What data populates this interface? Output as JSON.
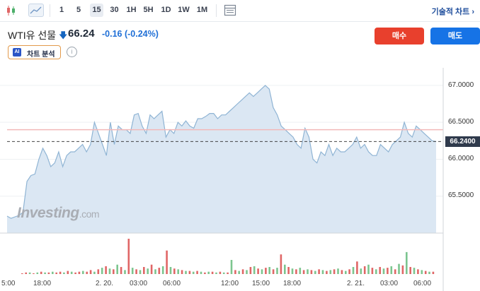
{
  "toolbar": {
    "intervals": [
      "1",
      "5",
      "15",
      "30",
      "1H",
      "5H",
      "1D",
      "1W",
      "1M"
    ],
    "active_interval": "15",
    "tech_analysis": "기술적 차트 ›"
  },
  "header": {
    "title": "WTI유 선물",
    "price": "66.24",
    "change": "-0.16 (-0.24%)",
    "ai_button": "차트 분석",
    "ai_badge": "AI",
    "buy": "매수",
    "sell": "매도"
  },
  "watermark": {
    "brand": "Investing",
    "suffix": ".com"
  },
  "colors": {
    "line": "#8fb4d4",
    "area": "#dbe7f3",
    "up": "#7cc58f",
    "down": "#e06666",
    "ref_line": "#f2b8b8",
    "buy": "#e8402d",
    "sell": "#1673e6"
  },
  "chart_data": {
    "type": "area",
    "y_ticks": [
      "67.0000",
      "66.5000",
      "66.0000",
      "65.5000"
    ],
    "y_range": [
      65.0,
      67.2
    ],
    "last_price_label": "66.2400",
    "last_price": 66.24,
    "reference_price": 66.4,
    "x_ticks": [
      "5:00",
      "18:00",
      "2. 20.",
      "03:00",
      "06:00",
      "12:00",
      "15:00",
      "18:00",
      "2. 21.",
      "03:00",
      "06:00"
    ],
    "values": [
      65.23,
      65.2,
      65.22,
      65.24,
      65.28,
      65.7,
      65.78,
      65.8,
      66.0,
      66.15,
      66.05,
      65.9,
      65.95,
      66.1,
      65.9,
      66.05,
      66.1,
      66.1,
      66.15,
      66.2,
      66.1,
      66.2,
      66.5,
      66.35,
      66.2,
      66.05,
      66.5,
      66.2,
      66.45,
      66.4,
      66.4,
      66.35,
      66.6,
      66.62,
      66.45,
      66.35,
      66.6,
      66.55,
      66.6,
      66.65,
      66.3,
      66.4,
      66.35,
      66.5,
      66.45,
      66.52,
      66.45,
      66.42,
      66.55,
      66.55,
      66.58,
      66.62,
      66.62,
      66.55,
      66.6,
      66.6,
      66.65,
      66.7,
      66.75,
      66.8,
      66.85,
      66.9,
      66.85,
      66.9,
      66.95,
      67.0,
      66.95,
      66.7,
      66.6,
      66.45,
      66.4,
      66.35,
      66.3,
      66.2,
      66.15,
      66.42,
      66.3,
      66.0,
      65.95,
      66.1,
      66.05,
      66.2,
      66.05,
      66.15,
      66.1,
      66.1,
      66.15,
      66.2,
      66.3,
      66.15,
      66.2,
      66.1,
      66.05,
      66.05,
      66.2,
      66.15,
      66.1,
      66.2,
      66.25,
      66.3,
      66.5,
      66.35,
      66.3,
      66.45,
      66.4,
      66.35,
      66.3,
      66.25,
      66.24
    ],
    "volume": [
      [
        0,
        1
      ],
      [
        0,
        2
      ],
      [
        1,
        2
      ],
      [
        0,
        1
      ],
      [
        1,
        2
      ],
      [
        0,
        3
      ],
      [
        1,
        2
      ],
      [
        0,
        2
      ],
      [
        1,
        3
      ],
      [
        0,
        2
      ],
      [
        0,
        3
      ],
      [
        1,
        2
      ],
      [
        0,
        4
      ],
      [
        1,
        3
      ],
      [
        0,
        2
      ],
      [
        0,
        3
      ],
      [
        1,
        4
      ],
      [
        0,
        3
      ],
      [
        0,
        5
      ],
      [
        1,
        3
      ],
      [
        0,
        6
      ],
      [
        1,
        8
      ],
      [
        0,
        10
      ],
      [
        1,
        7
      ],
      [
        0,
        6
      ],
      [
        1,
        12
      ],
      [
        0,
        9
      ],
      [
        1,
        5
      ],
      [
        0,
        45
      ],
      [
        1,
        8
      ],
      [
        0,
        6
      ],
      [
        1,
        5
      ],
      [
        0,
        9
      ],
      [
        1,
        7
      ],
      [
        0,
        12
      ],
      [
        1,
        6
      ],
      [
        0,
        8
      ],
      [
        1,
        10
      ],
      [
        0,
        30
      ],
      [
        1,
        9
      ],
      [
        0,
        7
      ],
      [
        1,
        6
      ],
      [
        0,
        5
      ],
      [
        1,
        4
      ],
      [
        0,
        4
      ],
      [
        1,
        3
      ],
      [
        0,
        4
      ],
      [
        1,
        3
      ],
      [
        0,
        2
      ],
      [
        1,
        3
      ],
      [
        0,
        3
      ],
      [
        1,
        2
      ],
      [
        0,
        3
      ],
      [
        1,
        2
      ],
      [
        0,
        2
      ],
      [
        1,
        18
      ],
      [
        0,
        5
      ],
      [
        1,
        4
      ],
      [
        0,
        6
      ],
      [
        1,
        5
      ],
      [
        0,
        9
      ],
      [
        1,
        10
      ],
      [
        0,
        7
      ],
      [
        1,
        6
      ],
      [
        0,
        8
      ],
      [
        1,
        9
      ],
      [
        0,
        6
      ],
      [
        1,
        8
      ],
      [
        0,
        25
      ],
      [
        1,
        12
      ],
      [
        0,
        9
      ],
      [
        1,
        7
      ],
      [
        0,
        6
      ],
      [
        1,
        8
      ],
      [
        0,
        5
      ],
      [
        1,
        6
      ],
      [
        0,
        5
      ],
      [
        1,
        4
      ],
      [
        0,
        6
      ],
      [
        1,
        5
      ],
      [
        0,
        4
      ],
      [
        1,
        5
      ],
      [
        0,
        6
      ],
      [
        1,
        7
      ],
      [
        0,
        5
      ],
      [
        1,
        4
      ],
      [
        0,
        6
      ],
      [
        1,
        9
      ],
      [
        0,
        16
      ],
      [
        1,
        7
      ],
      [
        0,
        10
      ],
      [
        1,
        12
      ],
      [
        0,
        8
      ],
      [
        1,
        6
      ],
      [
        0,
        9
      ],
      [
        1,
        7
      ],
      [
        0,
        8
      ],
      [
        1,
        10
      ],
      [
        0,
        6
      ],
      [
        1,
        13
      ],
      [
        0,
        11
      ],
      [
        1,
        28
      ],
      [
        0,
        9
      ],
      [
        1,
        8
      ],
      [
        0,
        6
      ],
      [
        1,
        5
      ],
      [
        0,
        4
      ],
      [
        1,
        3
      ],
      [
        0,
        3
      ]
    ]
  }
}
